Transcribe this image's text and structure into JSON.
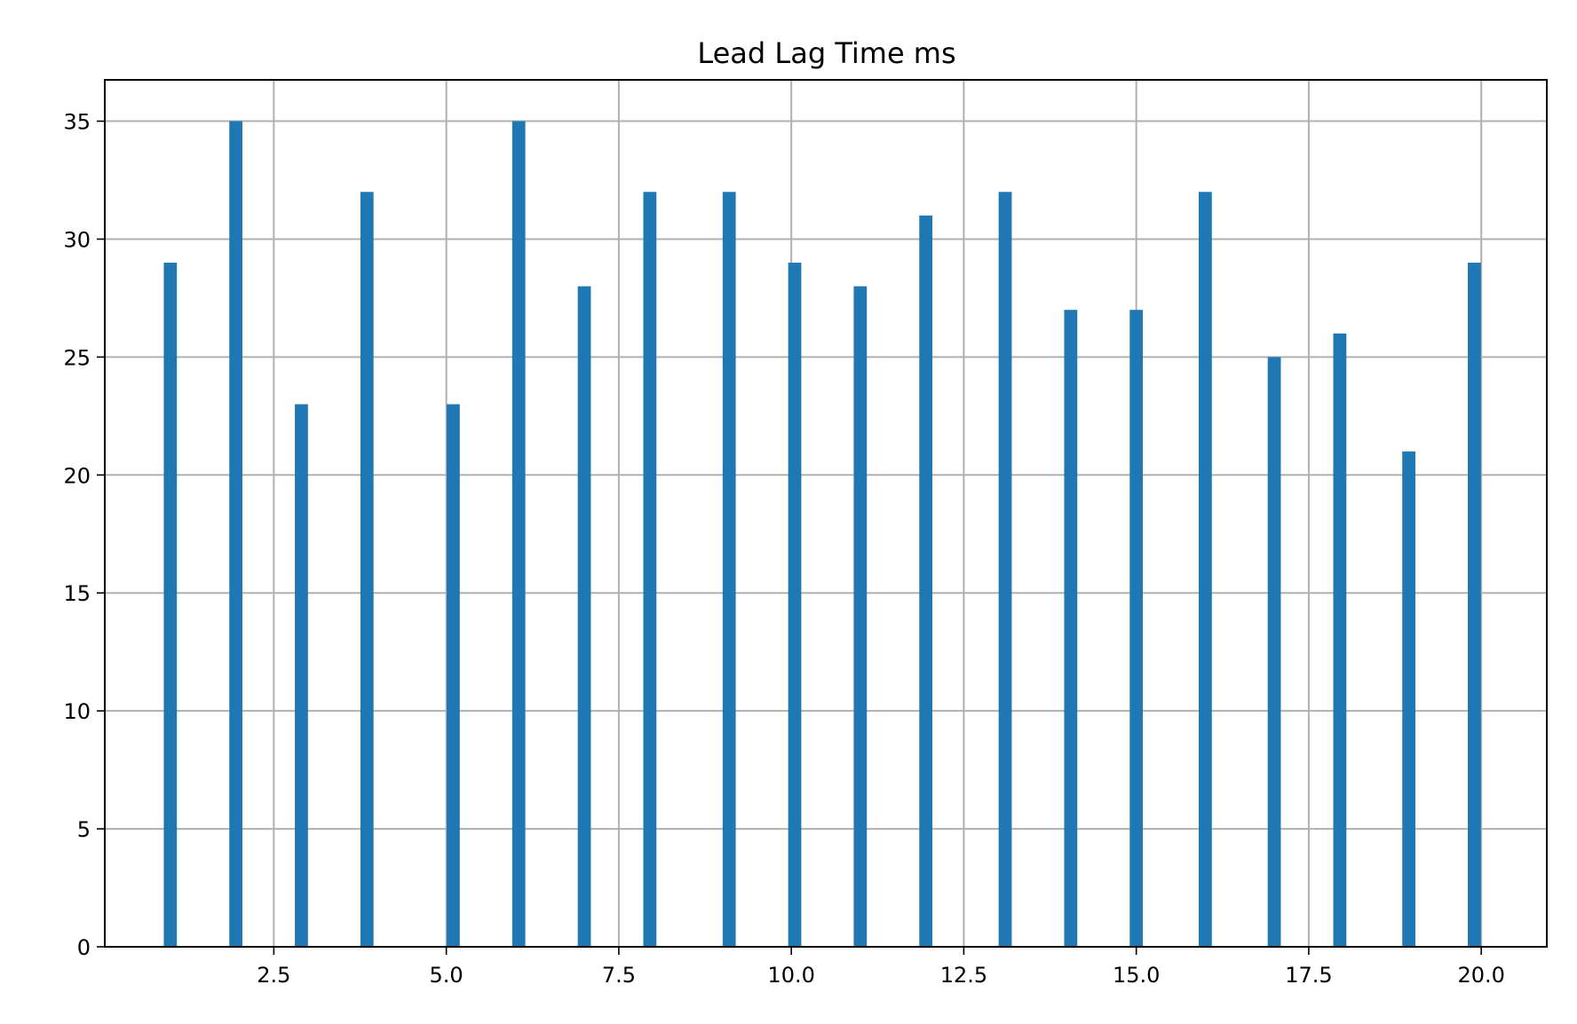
{
  "colors": {
    "bar": "#1f77b4",
    "grid": "#b0b0b0",
    "axes": "#000000",
    "background": "#ffffff"
  },
  "chart_data": {
    "type": "bar",
    "title": "Lead Lag Time ms",
    "xlabel": "",
    "ylabel": "",
    "grid": true,
    "xlim": [
      0.05,
      20.95
    ],
    "ylim": [
      0,
      36.75
    ],
    "xticks": [
      2.5,
      5.0,
      7.5,
      10.0,
      12.5,
      15.0,
      17.5,
      20.0
    ],
    "xtick_labels": [
      "2.5",
      "5.0",
      "7.5",
      "10.0",
      "12.5",
      "15.0",
      "17.5",
      "20.0"
    ],
    "yticks": [
      0,
      5,
      10,
      15,
      20,
      25,
      30,
      35
    ],
    "ytick_labels": [
      "0",
      "5",
      "10",
      "15",
      "20",
      "25",
      "30",
      "35"
    ],
    "bar_width": 0.19,
    "x": [
      1.0,
      1.95,
      2.9,
      3.85,
      5.1,
      6.05,
      7.0,
      7.95,
      9.1,
      10.05,
      11.0,
      11.95,
      13.1,
      14.05,
      15.0,
      16.0,
      17.0,
      17.95,
      18.95,
      19.9
    ],
    "values": [
      29,
      35,
      23,
      32,
      23,
      35,
      28,
      32,
      32,
      29,
      28,
      31,
      32,
      27,
      27,
      32,
      25,
      26,
      21,
      29
    ]
  }
}
